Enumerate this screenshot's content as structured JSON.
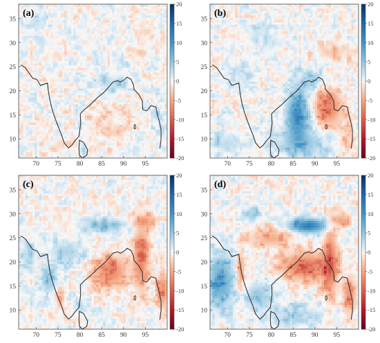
{
  "figure": {
    "colors": {
      "negative": "#a50f26",
      "neutral": "#f7f7f7",
      "positive": "#0b3a7e",
      "coast": "#333333"
    },
    "panels": [
      {
        "label": "(a)",
        "pattern": "a"
      },
      {
        "label": "(b)",
        "pattern": "b"
      },
      {
        "label": "(c)",
        "pattern": "c"
      },
      {
        "label": "(d)",
        "pattern": "d"
      }
    ],
    "x_ticks": [
      "70",
      "75",
      "80",
      "85",
      "90",
      "95"
    ],
    "x_tick_values": [
      70,
      75,
      80,
      85,
      90,
      95
    ],
    "y_ticks": [
      "35",
      "30",
      "25",
      "20",
      "15",
      "10"
    ],
    "y_tick_values": [
      35,
      30,
      25,
      20,
      15,
      10
    ],
    "lon_range": [
      66,
      100
    ],
    "lat_range": [
      6,
      38
    ],
    "colorbar": {
      "ticks": [
        "20",
        "15",
        "10",
        "5",
        "0",
        "-5",
        "-10",
        "-15",
        "-20"
      ],
      "values": [
        20,
        15,
        10,
        5,
        0,
        -5,
        -10,
        -15,
        -20
      ],
      "range": [
        -20,
        20
      ]
    }
  }
}
